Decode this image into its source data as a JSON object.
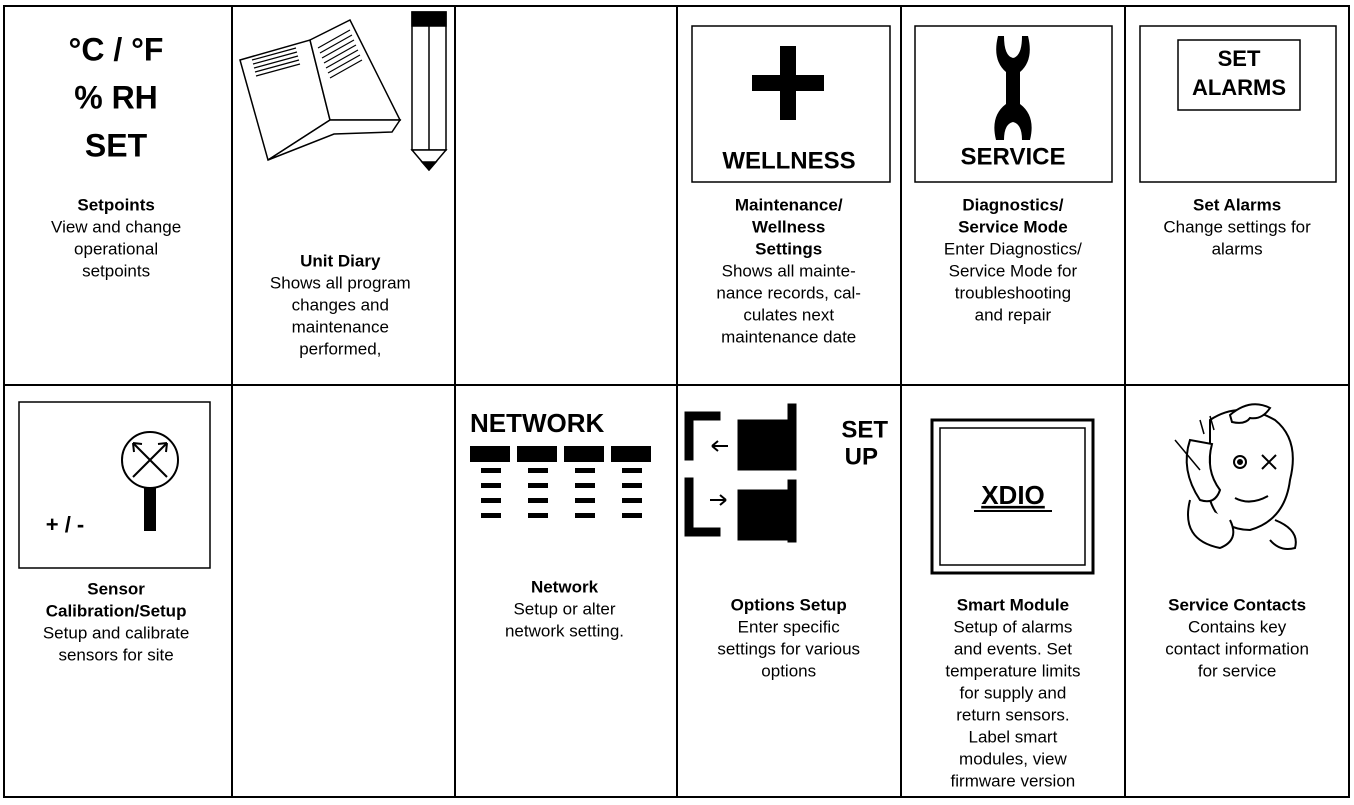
{
  "grid": {
    "rows": [
      [
        {
          "icon_text": [
            "°C / °F",
            "% RH",
            "SET"
          ],
          "title": [
            "Setpoints"
          ],
          "description": [
            "View and change",
            "operational",
            "setpoints"
          ]
        },
        {
          "title": [
            "Unit Diary"
          ],
          "description": [
            "Shows all program",
            "changes and",
            "maintenance",
            "performed,"
          ]
        },
        null,
        {
          "icon_text": [
            "WELLNESS"
          ],
          "title": [
            "Maintenance/",
            "Wellness",
            "Settings"
          ],
          "description": [
            "Shows all mainte-",
            "nance records, cal-",
            "culates next",
            "maintenance date"
          ]
        },
        {
          "icon_text": [
            "SERVICE"
          ],
          "title": [
            "Diagnostics/",
            "Service Mode"
          ],
          "description": [
            "Enter Diagnostics/",
            "Service Mode for",
            "troubleshooting",
            "and repair"
          ]
        },
        {
          "icon_text": [
            "SET",
            "ALARMS"
          ],
          "title": [
            "Set Alarms"
          ],
          "description": [
            "Change settings for",
            "alarms"
          ]
        }
      ],
      [
        {
          "icon_text": [
            "+ / -"
          ],
          "title": [
            "Sensor",
            "Calibration/Setup"
          ],
          "description": [
            "Setup and calibrate",
            "sensors for site"
          ]
        },
        null,
        {
          "icon_text": [
            "NETWORK"
          ],
          "title": [
            "Network"
          ],
          "description": [
            "Setup or alter",
            "network setting."
          ]
        },
        {
          "icon_text": [
            "SET",
            "UP"
          ],
          "title": [
            "Options Setup"
          ],
          "description": [
            "Enter specific",
            "settings for various",
            "options"
          ]
        },
        {
          "icon_text": [
            "XDIO"
          ],
          "title": [
            "Smart Module"
          ],
          "description": [
            "Setup of alarms",
            "and events. Set",
            "temperature limits",
            "for supply and",
            "return sensors.",
            "Label smart",
            "modules, view",
            "firmware version"
          ]
        },
        {
          "title": [
            "Service Contacts"
          ],
          "description": [
            "Contains key",
            "contact information",
            "for service"
          ]
        }
      ]
    ]
  }
}
